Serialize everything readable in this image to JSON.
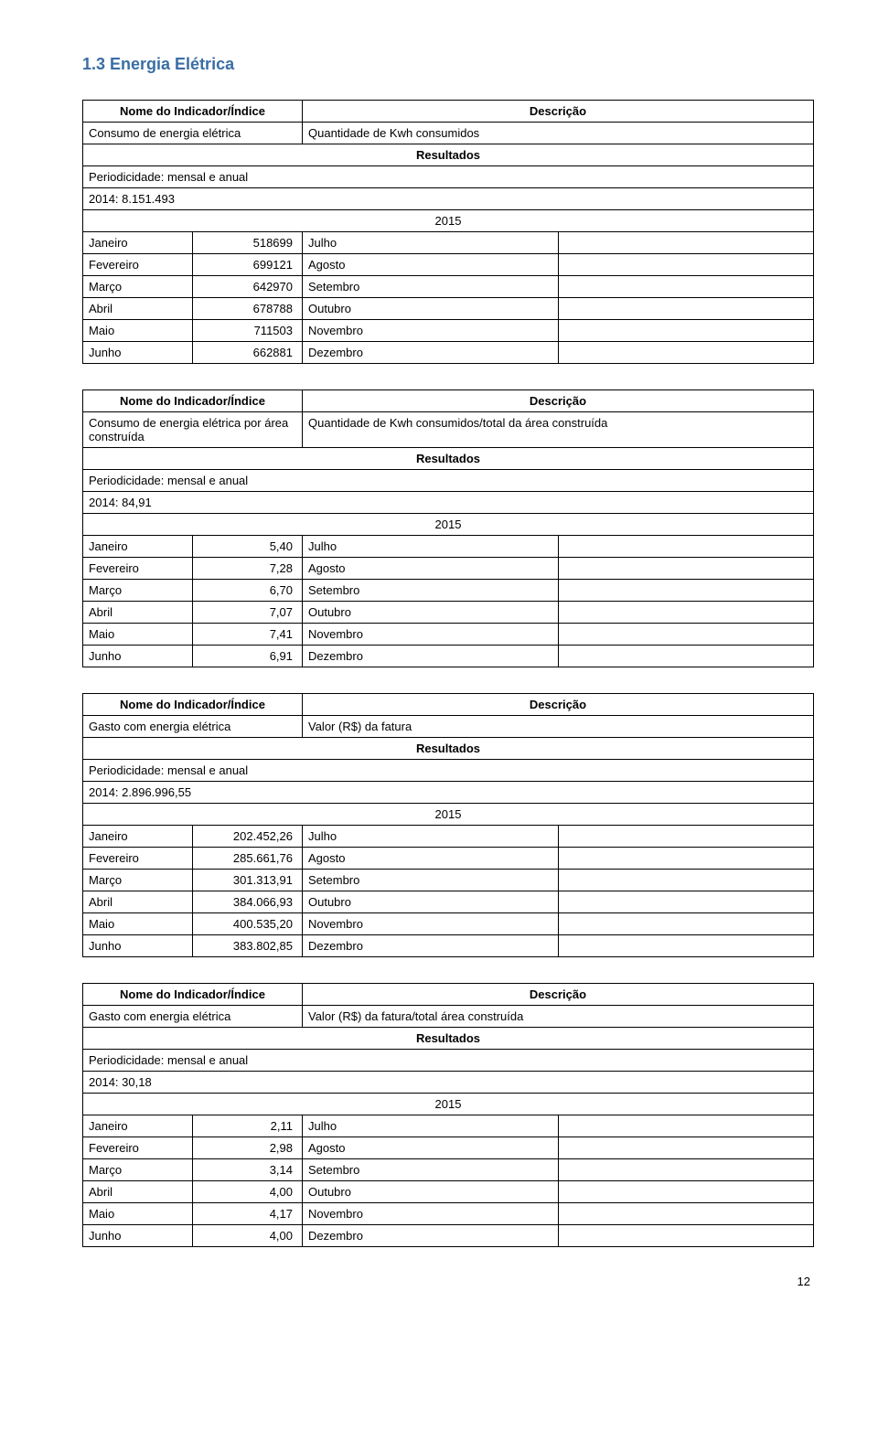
{
  "section_title": "1.3  Energia Elétrica",
  "header_left": "Nome do Indicador/Índice",
  "header_right": "Descrição",
  "resultados_label": "Resultados",
  "periodicidade_label": "Periodicidade: mensal e anual",
  "year_label": "2015",
  "months_left": [
    "Janeiro",
    "Fevereiro",
    "Março",
    "Abril",
    "Maio",
    "Junho"
  ],
  "months_right": [
    "Julho",
    "Agosto",
    "Setembro",
    "Outubro",
    "Novembro",
    "Dezembro"
  ],
  "page_number": "12",
  "tables": [
    {
      "indicator": "Consumo de energia elétrica",
      "description": "Quantidade de Kwh consumidos",
      "baseline": "2014: 8.151.493",
      "values": [
        "518699",
        "699121",
        "642970",
        "678788",
        "711503",
        "662881"
      ]
    },
    {
      "indicator": "Consumo de energia elétrica por área construída",
      "description": "Quantidade de Kwh consumidos/total da área construída",
      "baseline": "2014: 84,91",
      "values": [
        "5,40",
        "7,28",
        "6,70",
        "7,07",
        "7,41",
        "6,91"
      ]
    },
    {
      "indicator": "Gasto com energia elétrica",
      "description": "Valor (R$) da fatura",
      "baseline": "2014: 2.896.996,55",
      "values": [
        "202.452,26",
        "285.661,76",
        "301.313,91",
        "384.066,93",
        "400.535,20",
        "383.802,85"
      ]
    },
    {
      "indicator": "Gasto com energia elétrica",
      "description": "Valor (R$) da fatura/total área construída",
      "baseline": "2014: 30,18",
      "values": [
        "2,11",
        "2,98",
        "3,14",
        "4,00",
        "4,17",
        "4,00"
      ]
    }
  ],
  "layout": {
    "col_widths_top": [
      "50%",
      "50%"
    ],
    "header_text_color": "#000000",
    "border_color": "#000000"
  }
}
